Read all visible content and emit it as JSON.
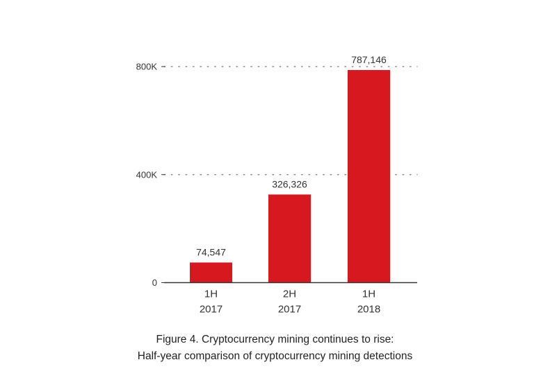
{
  "chart_data": {
    "type": "bar",
    "categories": [
      [
        "1H",
        "2017"
      ],
      [
        "2H",
        "2017"
      ],
      [
        "1H",
        "2018"
      ]
    ],
    "values": [
      74547,
      326326,
      787146
    ],
    "value_labels": [
      "74,547",
      "326,326",
      "787,146"
    ],
    "yticks": [
      {
        "value": 0,
        "label": "0"
      },
      {
        "value": 400000,
        "label": "400K"
      },
      {
        "value": 800000,
        "label": "800K"
      }
    ],
    "ylim": [
      0,
      800000
    ],
    "grid": "dotted horizontal at 400K and 800K",
    "bar_color": "#d7191f",
    "axis_color": "#333333",
    "grid_color": "#888888"
  },
  "caption": {
    "line1": "Figure 4. Cryptocurrency mining continues to rise:",
    "line2": "Half-year comparison of cryptocurrency mining detections"
  }
}
